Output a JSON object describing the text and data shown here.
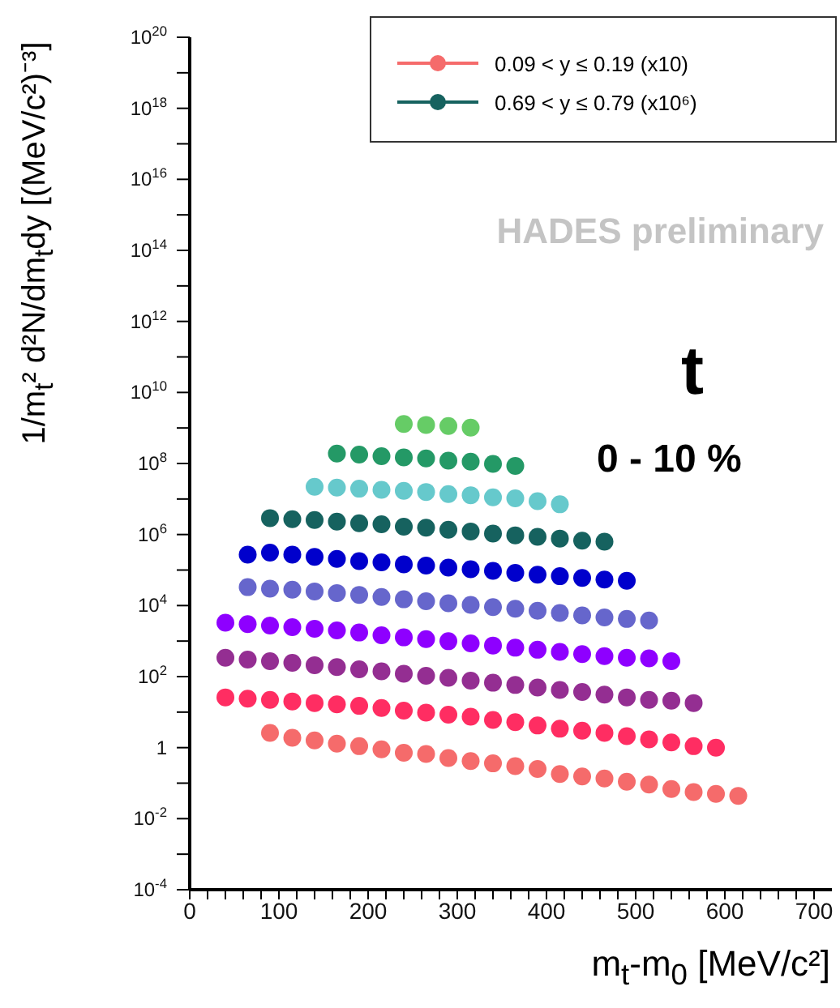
{
  "chart_data": {
    "type": "scatter",
    "xlabel": "m$_{t}$-m$_{0}$ [MeV/c²]",
    "ylabel": "1/m$_{t}$² d²N/dm$_{t}$dy [(MeV/c²)⁻³]",
    "log": "y",
    "marker": "circle",
    "legend": "top right",
    "xlim": [
      0,
      720
    ],
    "xticks": [
      0,
      {
        "value": 20,
        "label": null
      },
      {
        "value": 40,
        "label": null
      },
      {
        "value": 60,
        "label": null
      },
      {
        "value": 80,
        "label": null
      },
      100,
      {
        "value": 120,
        "label": null
      },
      {
        "value": 140,
        "label": null
      },
      {
        "value": 160,
        "label": null
      },
      {
        "value": 180,
        "label": null
      },
      200,
      {
        "value": 220,
        "label": null
      },
      {
        "value": 240,
        "label": null
      },
      {
        "value": 260,
        "label": null
      },
      {
        "value": 280,
        "label": null
      },
      300,
      {
        "value": 320,
        "label": null
      },
      {
        "value": 340,
        "label": null
      },
      {
        "value": 360,
        "label": null
      },
      {
        "value": 380,
        "label": null
      },
      400,
      {
        "value": 420,
        "label": null
      },
      {
        "value": 440,
        "label": null
      },
      {
        "value": 460,
        "label": null
      },
      {
        "value": 480,
        "label": null
      },
      500,
      {
        "value": 520,
        "label": null
      },
      {
        "value": 540,
        "label": null
      },
      {
        "value": 560,
        "label": null
      },
      {
        "value": 580,
        "label": null
      },
      600,
      {
        "value": 620,
        "label": null
      },
      {
        "value": 640,
        "label": null
      },
      {
        "value": 660,
        "label": null
      },
      {
        "value": 680,
        "label": null
      },
      700
    ],
    "ylim": [
      0.0001,
      1e+20
    ],
    "yticks": [
      {
        "value": 0.0001,
        "label": "10$^{-4}$"
      },
      {
        "value": 0.001,
        "label": null
      },
      {
        "value": 0.01,
        "label": "10$^{-2}$"
      },
      {
        "value": 0.1,
        "label": null
      },
      1,
      {
        "value": 10,
        "label": null
      },
      {
        "value": 100,
        "label": "10$^{2}$"
      },
      {
        "value": 1000,
        "label": null
      },
      {
        "value": 10000,
        "label": "10$^{4}$"
      },
      {
        "value": 100000,
        "label": null
      },
      {
        "value": 1000000,
        "label": "10$^{6}$"
      },
      {
        "value": 10000000,
        "label": null
      },
      {
        "value": 100000000,
        "label": "10$^{8}$"
      },
      {
        "value": 1000000000,
        "label": null
      },
      {
        "value": 10000000000,
        "label": "10$^{10}$"
      },
      {
        "value": 100000000000,
        "label": null
      },
      {
        "value": 1000000000000,
        "label": "10$^{12}$"
      },
      {
        "value": 10000000000000,
        "label": null
      },
      {
        "value": 100000000000000,
        "label": "10$^{14}$"
      },
      {
        "value": 1000000000000000,
        "label": null
      },
      {
        "value": 10000000000000000,
        "label": "10$^{16}$"
      },
      {
        "value": 100000000000000000,
        "label": null
      },
      {
        "value": 1000000000000000000,
        "label": "10$^{18}$"
      },
      {
        "value": 10000000000000000000,
        "label": null
      },
      {
        "value": 100000000000000000000,
        "label": "10$^{20}$"
      }
    ],
    "annotations": [
      "HADES preliminary",
      "t",
      "0 - 10 %"
    ],
    "series": [
      {
        "name": "0.09 < y ≤ 0.19 (x10)",
        "color": "#f56b6b",
        "x": [
          90,
          115,
          140,
          165,
          190,
          215,
          240,
          265,
          290,
          315,
          340,
          365,
          390,
          415,
          440,
          465,
          490,
          515,
          540,
          565,
          590,
          615
        ],
        "values": [
          2.6,
          1.9,
          1.6,
          1.3,
          1.1,
          0.9,
          0.72,
          0.66,
          0.51,
          0.42,
          0.36,
          0.3,
          0.25,
          0.18,
          0.155,
          0.135,
          0.11,
          0.091,
          0.068,
          0.056,
          0.05,
          0.044
        ]
      },
      {
        "color": "#ff2d62",
        "x": [
          40,
          65,
          90,
          115,
          140,
          165,
          190,
          215,
          240,
          265,
          290,
          315,
          340,
          365,
          390,
          415,
          440,
          465,
          490,
          515,
          540,
          565,
          590
        ],
        "values": [
          26,
          24,
          22,
          20,
          18,
          16.5,
          15,
          13,
          11,
          9.7,
          8.5,
          7.4,
          6,
          5.2,
          4.2,
          3.4,
          3,
          2.6,
          2.1,
          1.7,
          1.4,
          1.1,
          1.0
        ]
      },
      {
        "color": "#942e92",
        "x": [
          40,
          65,
          90,
          115,
          140,
          165,
          190,
          215,
          240,
          265,
          290,
          315,
          340,
          365,
          390,
          415,
          440,
          465,
          490,
          515,
          540,
          565
        ],
        "values": [
          340,
          300,
          270,
          245,
          210,
          185,
          160,
          140,
          120,
          105,
          92,
          77,
          67,
          58,
          49,
          42,
          37,
          31,
          26,
          22,
          21,
          18
        ]
      },
      {
        "color": "#8e00ff",
        "x": [
          40,
          65,
          90,
          115,
          140,
          165,
          190,
          215,
          240,
          265,
          290,
          315,
          340,
          365,
          390,
          415,
          440,
          465,
          490,
          515,
          540
        ],
        "values": [
          3300,
          3000,
          2750,
          2460,
          2220,
          2000,
          1740,
          1460,
          1270,
          1140,
          990,
          860,
          750,
          650,
          570,
          495,
          430,
          375,
          340,
          325,
          270
        ]
      },
      {
        "color": "#6666cc",
        "x": [
          65,
          90,
          115,
          140,
          165,
          190,
          215,
          240,
          265,
          290,
          315,
          340,
          365,
          390,
          415,
          440,
          465,
          490,
          515
        ],
        "values": [
          33000,
          30000,
          28000,
          25000,
          22500,
          20000,
          17500,
          15000,
          13300,
          11600,
          10400,
          9000,
          8100,
          7100,
          6200,
          5300,
          4650,
          4200,
          3800
        ]
      },
      {
        "color": "#0000cc",
        "x": [
          65,
          90,
          115,
          140,
          165,
          190,
          215,
          240,
          265,
          290,
          315,
          340,
          365,
          390,
          415,
          440,
          465,
          490
        ],
        "values": [
          270000,
          310000,
          270000,
          235000,
          205000,
          178000,
          165000,
          144000,
          134000,
          117000,
          105000,
          95000,
          83000,
          74000,
          67000,
          60000,
          54000,
          50000
        ]
      },
      {
        "name": "0.69 < y ≤ 0.79 (x10⁶)",
        "color": "#16625f",
        "x": [
          90,
          115,
          140,
          165,
          190,
          215,
          240,
          265,
          290,
          315,
          340,
          365,
          390,
          415,
          440,
          465
        ],
        "values": [
          2900000,
          2700000,
          2550000,
          2300000,
          2080000,
          1940000,
          1670000,
          1560000,
          1360000,
          1220000,
          1060000,
          950000,
          860000,
          770000,
          670000,
          630000
        ]
      },
      {
        "color": "#66c9cc",
        "x": [
          140,
          165,
          190,
          215,
          240,
          265,
          290,
          315,
          340,
          365,
          390,
          415
        ],
        "values": [
          22000000,
          21000000,
          19500000,
          18200000,
          17000000,
          15800000,
          13700000,
          12800000,
          11100000,
          10400000,
          8700000,
          7100000
        ]
      },
      {
        "color": "#249966",
        "x": [
          165,
          190,
          215,
          240,
          265,
          290,
          315,
          340,
          365
        ],
        "values": [
          190000000,
          178000000,
          160000000,
          149000000,
          139000000,
          120000000,
          112000000,
          97000000,
          85000000
        ]
      },
      {
        "color": "#66cc66",
        "x": [
          240,
          265,
          290,
          315
        ],
        "values": [
          1300000000,
          1220000000,
          1140000000,
          1020000000
        ]
      }
    ]
  }
}
